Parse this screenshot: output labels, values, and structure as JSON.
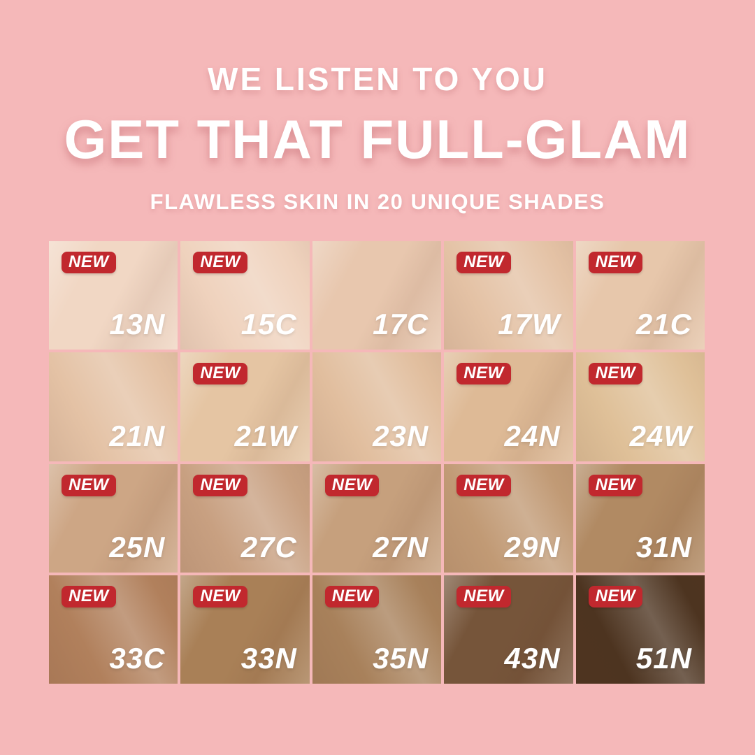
{
  "page": {
    "background": "#f5b8b9"
  },
  "header": {
    "line1": "WE LISTEN TO YOU",
    "line2": "GET THAT FULL-GLAM",
    "line3": "FLAWLESS SKIN IN 20 UNIQUE SHADES",
    "text_color": "#ffffff"
  },
  "badge": {
    "label": "NEW",
    "bg": "#c1282e",
    "text_color": "#ffffff"
  },
  "shade_grid": {
    "rows": 4,
    "cols": 5,
    "cells": [
      {
        "shade": "13N",
        "new": true,
        "color": "#f1d7c4"
      },
      {
        "shade": "15C",
        "new": true,
        "color": "#efd2bd"
      },
      {
        "shade": "17C",
        "new": false,
        "color": "#e8c7ae"
      },
      {
        "shade": "17W",
        "new": true,
        "color": "#e4c2a5"
      },
      {
        "shade": "21C",
        "new": true,
        "color": "#e7c7ab"
      },
      {
        "shade": "21N",
        "new": false,
        "color": "#e4c2a5"
      },
      {
        "shade": "21W",
        "new": true,
        "color": "#e5c5a3"
      },
      {
        "shade": "23N",
        "new": false,
        "color": "#e1be9e"
      },
      {
        "shade": "24N",
        "new": true,
        "color": "#deba96"
      },
      {
        "shade": "24W",
        "new": true,
        "color": "#dfc098"
      },
      {
        "shade": "25N",
        "new": true,
        "color": "#cda685"
      },
      {
        "shade": "27C",
        "new": true,
        "color": "#c8a081"
      },
      {
        "shade": "27N",
        "new": true,
        "color": "#c6a07d"
      },
      {
        "shade": "29N",
        "new": true,
        "color": "#c19a75"
      },
      {
        "shade": "31N",
        "new": true,
        "color": "#b18a63"
      },
      {
        "shade": "33C",
        "new": true,
        "color": "#b1805c"
      },
      {
        "shade": "33N",
        "new": true,
        "color": "#a98057"
      },
      {
        "shade": "35N",
        "new": true,
        "color": "#a8815b"
      },
      {
        "shade": "43N",
        "new": true,
        "color": "#76553a"
      },
      {
        "shade": "51N",
        "new": true,
        "color": "#4d3420"
      }
    ]
  }
}
